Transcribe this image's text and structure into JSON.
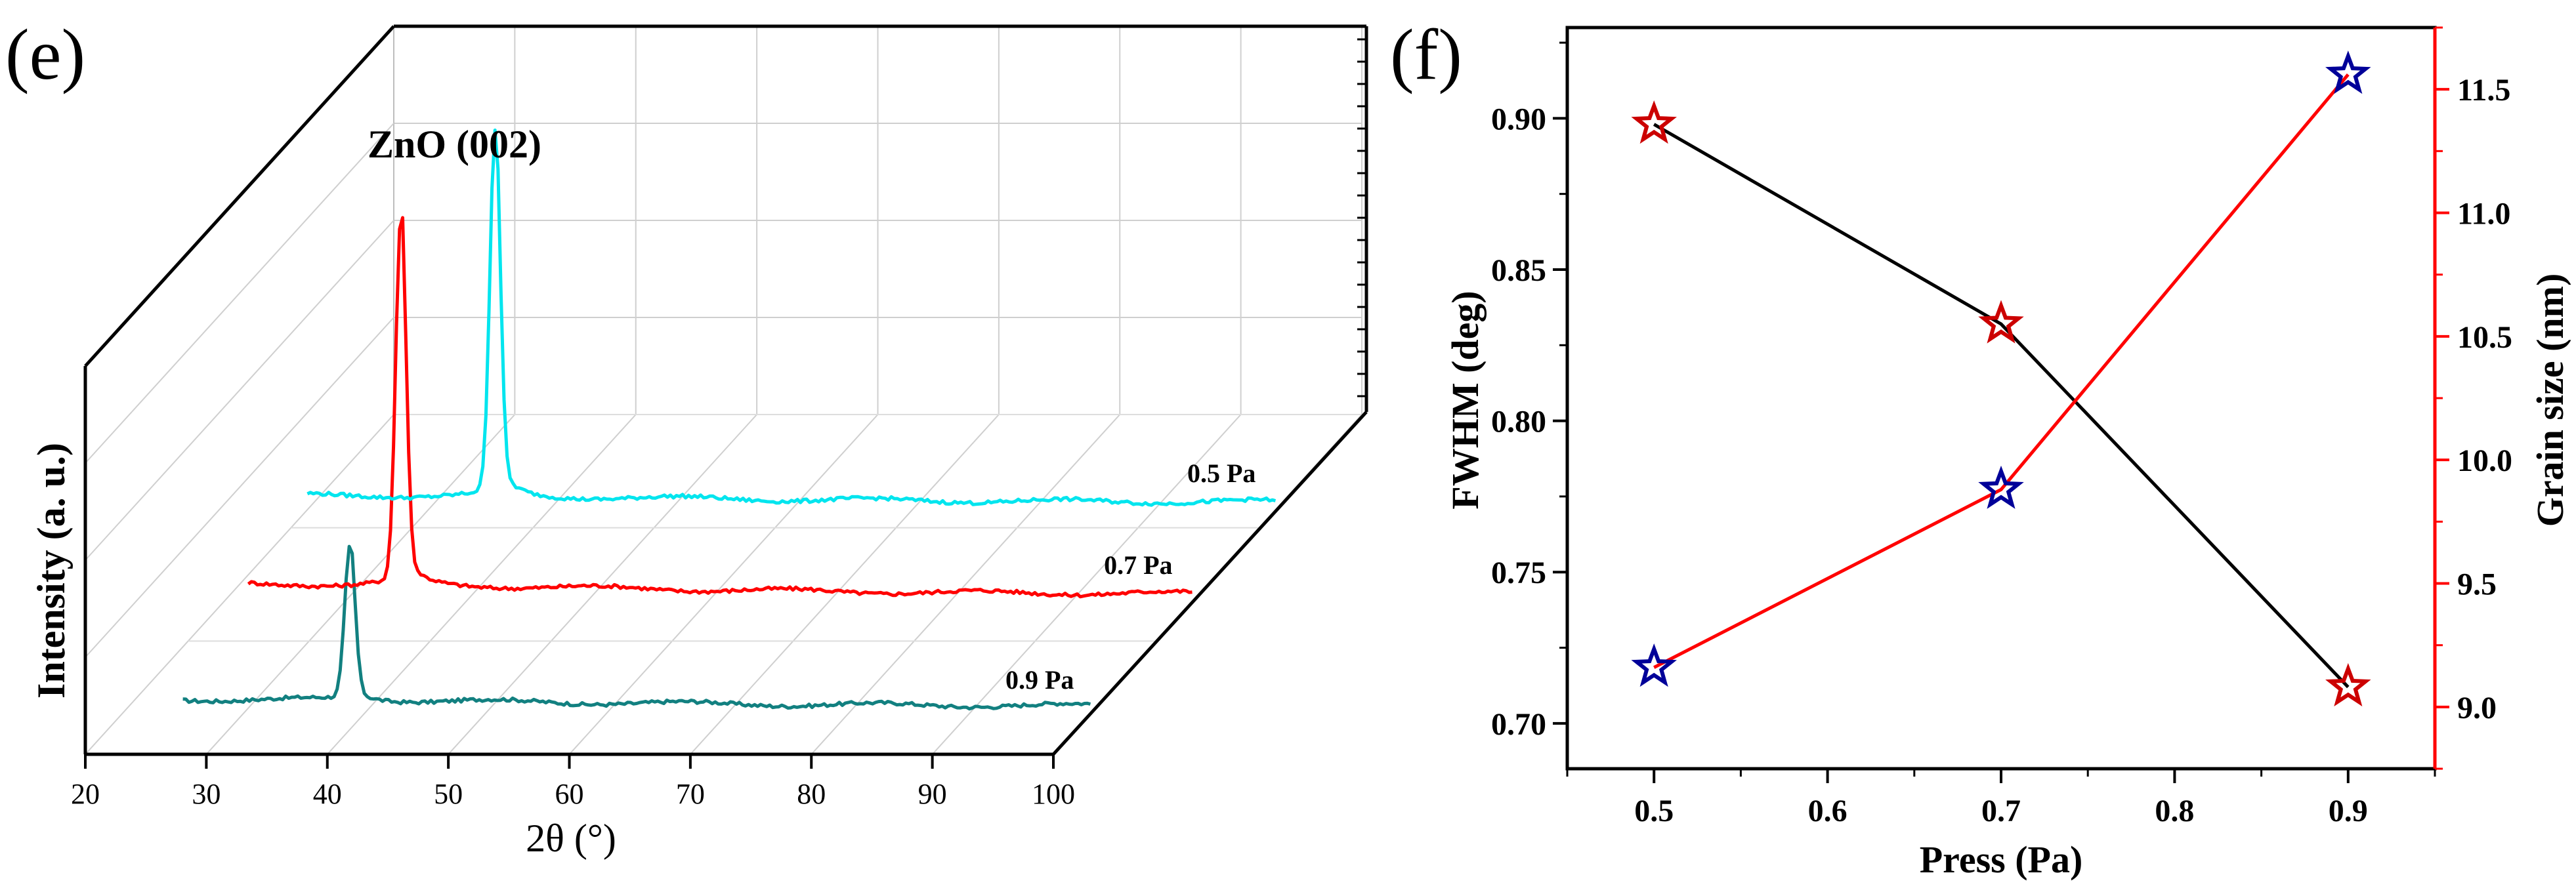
{
  "figure_labels": {
    "left": "(e)",
    "right": "(f)"
  },
  "chart_data": [
    {
      "type": "line",
      "subtype": "3d-waterfall",
      "panel": "(e)",
      "title": "",
      "annotation": "ZnO (002)",
      "xlabel": "2θ (°)",
      "ylabel": "Intensity (a. u.)",
      "xlim": [
        20,
        100
      ],
      "xticks": [
        "20",
        "30",
        "40",
        "50",
        "60",
        "70",
        "80",
        "90",
        "100"
      ],
      "series": [
        {
          "name": "0.9 Pa",
          "color": "#128080",
          "x_start": 25,
          "x_end": 100,
          "peak_x": 38.8,
          "peak_height": 0.42,
          "baseline": 0.02
        },
        {
          "name": "0.7 Pa",
          "color": "#ff0000",
          "x_start": 22,
          "x_end": 100,
          "peak_x": 34.6,
          "peak_height": 1.0,
          "baseline": 0.03
        },
        {
          "name": "0.5 Pa",
          "color": "#00e5ee",
          "x_start": 20,
          "x_end": 100,
          "peak_x": 35.5,
          "peak_height": 1.0,
          "baseline": 0.02
        }
      ]
    },
    {
      "type": "line",
      "panel": "(f)",
      "title": "",
      "xlabel": "Press (Pa)",
      "ylabel": "FWHM (deg)",
      "y2label": "Grain size (nm)",
      "xlim": [
        0.45,
        0.95
      ],
      "ylim": [
        0.685,
        0.93
      ],
      "y2lim": [
        8.75,
        11.75
      ],
      "xticks": [
        "0.5",
        "0.6",
        "0.7",
        "0.8",
        "0.9"
      ],
      "yticks": [
        "0.70",
        "0.75",
        "0.80",
        "0.85",
        "0.90"
      ],
      "y2ticks": [
        "9.0",
        "9.5",
        "10.0",
        "10.5",
        "11.0",
        "11.5"
      ],
      "series": [
        {
          "name": "FWHM",
          "axis": "left",
          "line_color": "#000000",
          "marker_color": "#cc0000",
          "x": [
            0.5,
            0.7,
            0.9
          ],
          "values": [
            0.898,
            0.832,
            0.712
          ]
        },
        {
          "name": "Grain size",
          "axis": "right",
          "line_color": "#ff0000",
          "marker_color": "#000099",
          "x": [
            0.5,
            0.7,
            0.9
          ],
          "values": [
            9.16,
            9.88,
            11.56
          ]
        }
      ]
    }
  ]
}
